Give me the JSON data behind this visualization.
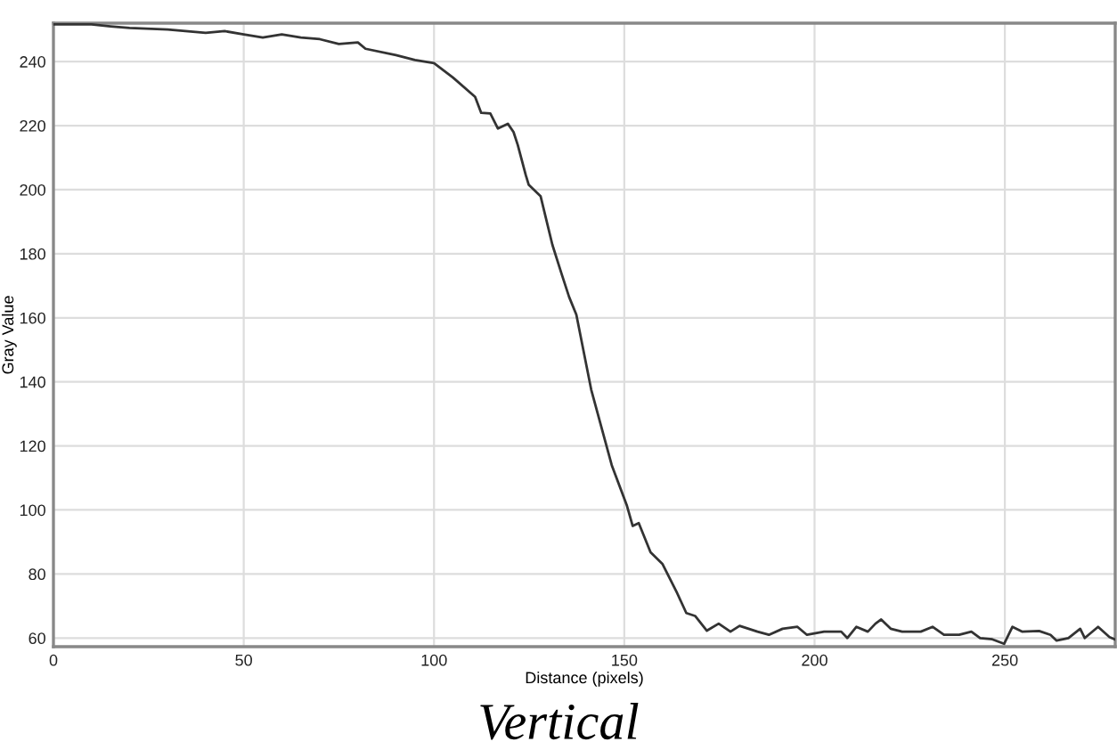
{
  "chart_data": {
    "type": "line",
    "xlabel": "Distance (pixels)",
    "ylabel": "Gray Value",
    "annotations": [
      "Vertical"
    ],
    "xlim": [
      0,
      279
    ],
    "ylim": [
      57.3,
      252
    ],
    "xticks": [
      0,
      50,
      100,
      150,
      200,
      250
    ],
    "yticks": [
      60,
      80,
      100,
      120,
      140,
      160,
      180,
      200,
      220,
      240
    ],
    "grid": true,
    "marker": "none",
    "line_style": "solid",
    "series": [
      {
        "color": "#333333",
        "x": [
          0,
          5,
          10,
          15,
          20,
          30,
          40,
          45,
          50,
          55,
          60,
          65,
          70,
          75,
          80,
          82,
          90,
          95,
          100,
          105,
          110.8,
          112.4,
          114.8,
          116.8,
          119.4,
          120.9,
          122,
          124.1,
          124.9,
          128,
          131.1,
          133.5,
          135.5,
          137.4,
          141.3,
          146.7,
          150.7,
          152.2,
          153.8,
          156.9,
          160,
          163.9,
          166.3,
          168.6,
          171.7,
          174.8,
          177.9,
          180.3,
          185,
          188,
          191.6,
          195.5,
          198,
          202.5,
          207,
          208.6,
          211,
          214,
          216,
          217.5,
          220,
          223,
          227.9,
          231,
          234,
          238,
          241.2,
          243.5,
          246.7,
          249.8,
          252,
          254.5,
          259,
          262,
          263.6,
          266.7,
          269.8,
          271,
          274.5,
          277.5,
          279
        ],
        "values": [
          251.6,
          251.6,
          251.6,
          251,
          250.5,
          250,
          249,
          249.5,
          248.5,
          247.5,
          248.5,
          247.5,
          247,
          245.5,
          246,
          244,
          242,
          240.5,
          239.5,
          235,
          229,
          224,
          223.8,
          219.1,
          220.6,
          218,
          214,
          204.6,
          201.5,
          198,
          182.8,
          173.8,
          166.5,
          161,
          137.6,
          114,
          101.3,
          95,
          95.9,
          86.8,
          83.2,
          74,
          67.8,
          66.9,
          62.3,
          64.5,
          62,
          63.8,
          62,
          61,
          62.9,
          63.5,
          61,
          62,
          62,
          60,
          63.5,
          62,
          64.5,
          65.8,
          62.9,
          62,
          62,
          63.5,
          61,
          61,
          62,
          60,
          59.6,
          58.2,
          63.5,
          62,
          62.2,
          61,
          59.2,
          60,
          62.9,
          60,
          63.5,
          60.3,
          59.5
        ]
      }
    ]
  }
}
